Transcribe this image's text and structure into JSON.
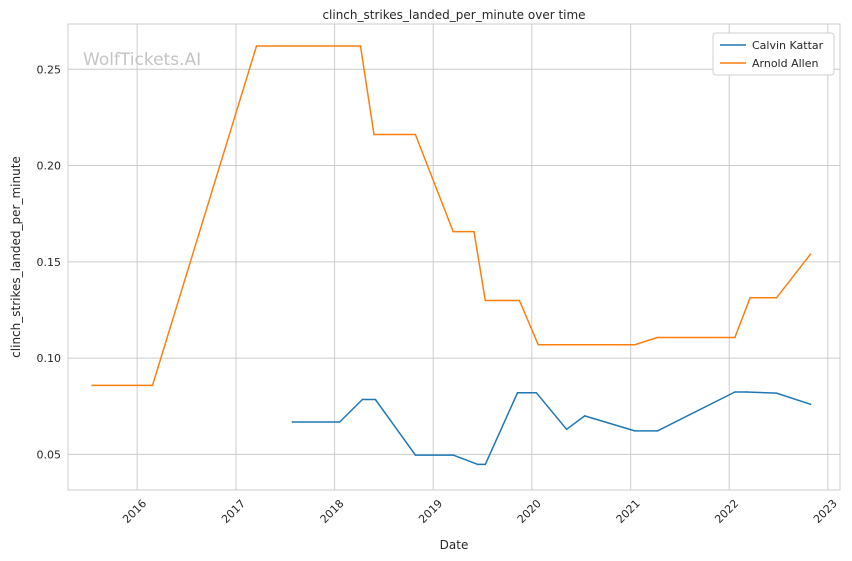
{
  "chart_data": {
    "type": "line",
    "title": "clinch_strikes_landed_per_minute over time",
    "xlabel": "Date",
    "ylabel": "clinch_strikes_landed_per_minute",
    "watermark": "WolfTickets.AI",
    "xlim": [
      "2015-04-20",
      "2023-02-15"
    ],
    "ylim": [
      0.0315,
      0.2735
    ],
    "x_ticks": [
      "2016",
      "2017",
      "2018",
      "2019",
      "2020",
      "2021",
      "2022",
      "2023"
    ],
    "y_ticks": [
      "0.05",
      "0.10",
      "0.15",
      "0.20",
      "0.25"
    ],
    "grid": true,
    "legend_position": "top-right",
    "series": [
      {
        "name": "Calvin Kattar",
        "color": "#1f77b4",
        "points": [
          [
            "2017-07-29",
            0.0668
          ],
          [
            "2018-01-20",
            0.0668
          ],
          [
            "2018-04-14",
            0.0785
          ],
          [
            "2018-06-01",
            0.0785
          ],
          [
            "2018-10-27",
            0.0496
          ],
          [
            "2019-03-16",
            0.0496
          ],
          [
            "2019-06-15",
            0.0448
          ],
          [
            "2019-07-13",
            0.0448
          ],
          [
            "2019-11-09",
            0.082
          ],
          [
            "2020-01-18",
            0.082
          ],
          [
            "2020-05-09",
            0.063
          ],
          [
            "2020-07-15",
            0.07
          ],
          [
            "2021-01-16",
            0.0622
          ],
          [
            "2021-04-10",
            0.0622
          ],
          [
            "2022-01-22",
            0.0824
          ],
          [
            "2022-03-05",
            0.0824
          ],
          [
            "2022-06-25",
            0.0818
          ],
          [
            "2022-10-29",
            0.076
          ]
        ]
      },
      {
        "name": "Arnold Allen",
        "color": "#ff7f0e",
        "points": [
          [
            "2015-07-18",
            0.0858
          ],
          [
            "2016-02-27",
            0.0858
          ],
          [
            "2017-03-18",
            0.2621
          ],
          [
            "2018-04-07",
            0.2621
          ],
          [
            "2018-05-27",
            0.2161
          ],
          [
            "2018-10-27",
            0.2161
          ],
          [
            "2019-03-16",
            0.1657
          ],
          [
            "2019-06-01",
            0.1657
          ],
          [
            "2019-07-13",
            0.1299
          ],
          [
            "2019-11-16",
            0.1299
          ],
          [
            "2020-01-25",
            0.1069
          ],
          [
            "2021-01-16",
            0.1069
          ],
          [
            "2021-04-10",
            0.1107
          ],
          [
            "2022-01-22",
            0.1107
          ],
          [
            "2022-03-19",
            0.1313
          ],
          [
            "2022-06-25",
            0.1313
          ],
          [
            "2022-10-29",
            0.154
          ]
        ]
      }
    ]
  }
}
